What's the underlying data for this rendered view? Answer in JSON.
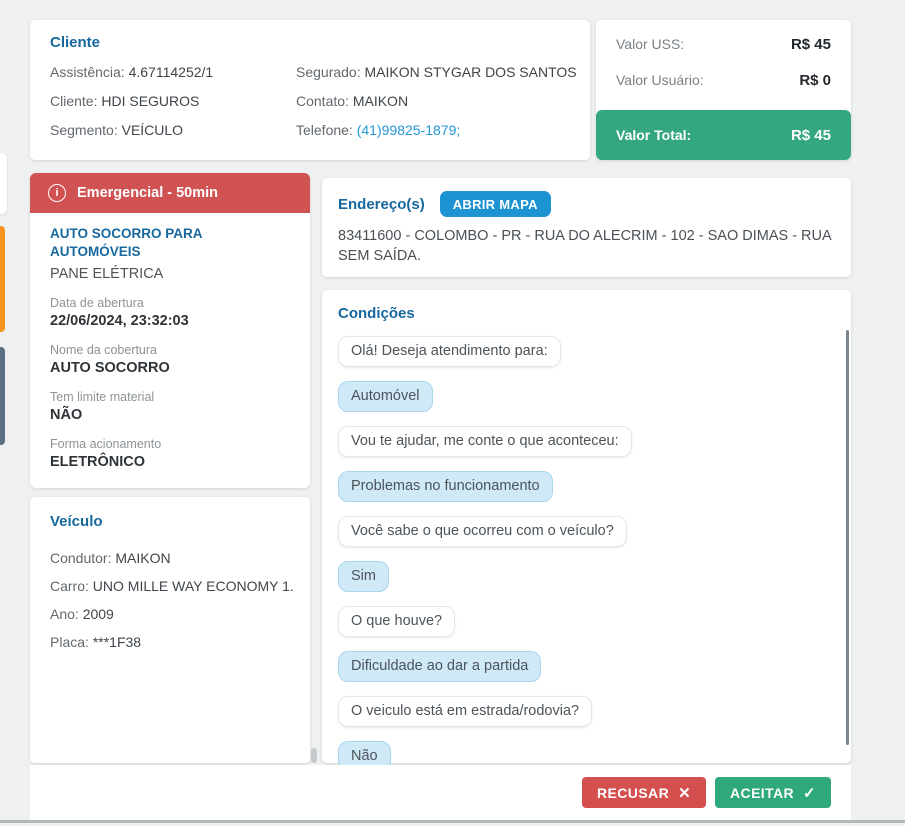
{
  "client_card": {
    "title": "Cliente",
    "rows": [
      {
        "label": "Assistência:",
        "value": "4.67114252/1"
      },
      {
        "label": "Segurado:",
        "value": "MAIKON STYGAR DOS SANTOS"
      },
      {
        "label": "Cliente:",
        "value": "HDI SEGUROS"
      },
      {
        "label": "Contato:",
        "value": "MAIKON"
      },
      {
        "label": "Segmento:",
        "value": "VEÍCULO"
      },
      {
        "label": "Telefone:",
        "value": "(41)99825-1879;"
      }
    ]
  },
  "values_card": {
    "rows": [
      {
        "label": "Valor USS:",
        "value": "R$ 45"
      },
      {
        "label": "Valor Usuário:",
        "value": "R$ 0"
      }
    ],
    "total": {
      "label": "Valor Total:",
      "value": "R$ 45"
    }
  },
  "service_card": {
    "banner_label": "Emergencial - 50min",
    "info_icon_glyph": "i",
    "title": "AUTO SOCORRO PARA AUTOMÓVEIS",
    "subtitle": "PANE ELÉTRICA",
    "fields": [
      {
        "label": "Data de abertura",
        "value": "22/06/2024, 23:32:03"
      },
      {
        "label": "Nome da cobertura",
        "value": "AUTO SOCORRO"
      },
      {
        "label": "Tem limite material",
        "value": "NÃO"
      },
      {
        "label": "Forma acionamento",
        "value": "ELETRÔNICO"
      }
    ]
  },
  "vehicle_card": {
    "title": "Veículo",
    "rows": [
      {
        "label": "Condutor:",
        "value": "MAIKON"
      },
      {
        "label": "Carro:",
        "value": "UNO MILLE WAY ECONOMY 1."
      },
      {
        "label": "Ano:",
        "value": "2009"
      },
      {
        "label": "Placa:",
        "value": "***1F38"
      }
    ]
  },
  "address_card": {
    "title": "Endereço(s)",
    "map_button_label": "ABRIR MAPA",
    "address": "83411600 - COLOMBO - PR - RUA DO ALECRIM - 102 - SAO DIMAS - RUA SEM SAÍDA."
  },
  "conditions_card": {
    "title": "Condições",
    "messages": [
      {
        "type": "question",
        "text": "Olá! Deseja atendimento para:"
      },
      {
        "type": "answer",
        "text": "Automóvel"
      },
      {
        "type": "question",
        "text": "Vou te ajudar, me conte o que aconteceu:"
      },
      {
        "type": "answer",
        "text": "Problemas no funcionamento"
      },
      {
        "type": "question",
        "text": "Você sabe o que ocorreu com o veículo?"
      },
      {
        "type": "answer",
        "text": "Sim"
      },
      {
        "type": "question",
        "text": "O que houve?"
      },
      {
        "type": "answer",
        "text": "Dificuldade ao dar a partida"
      },
      {
        "type": "question",
        "text": "O veiculo está em estrada/rodovia?"
      },
      {
        "type": "answer",
        "text": "Não"
      }
    ]
  },
  "footer": {
    "reject_label": "RECUSAR",
    "reject_icon_glyph": "✕",
    "accept_label": "ACEITAR",
    "accept_icon_glyph": "✓"
  },
  "colors": {
    "heading_blue": "#17689e",
    "banner_red": "#d05253",
    "total_green": "#35a77e",
    "accept_green": "#2fa97c",
    "reject_red": "#d4504e",
    "map_button_blue": "#1e93d2",
    "phone_link_blue": "#2496d8",
    "answer_bubble_blue": "#cfe9f6"
  }
}
